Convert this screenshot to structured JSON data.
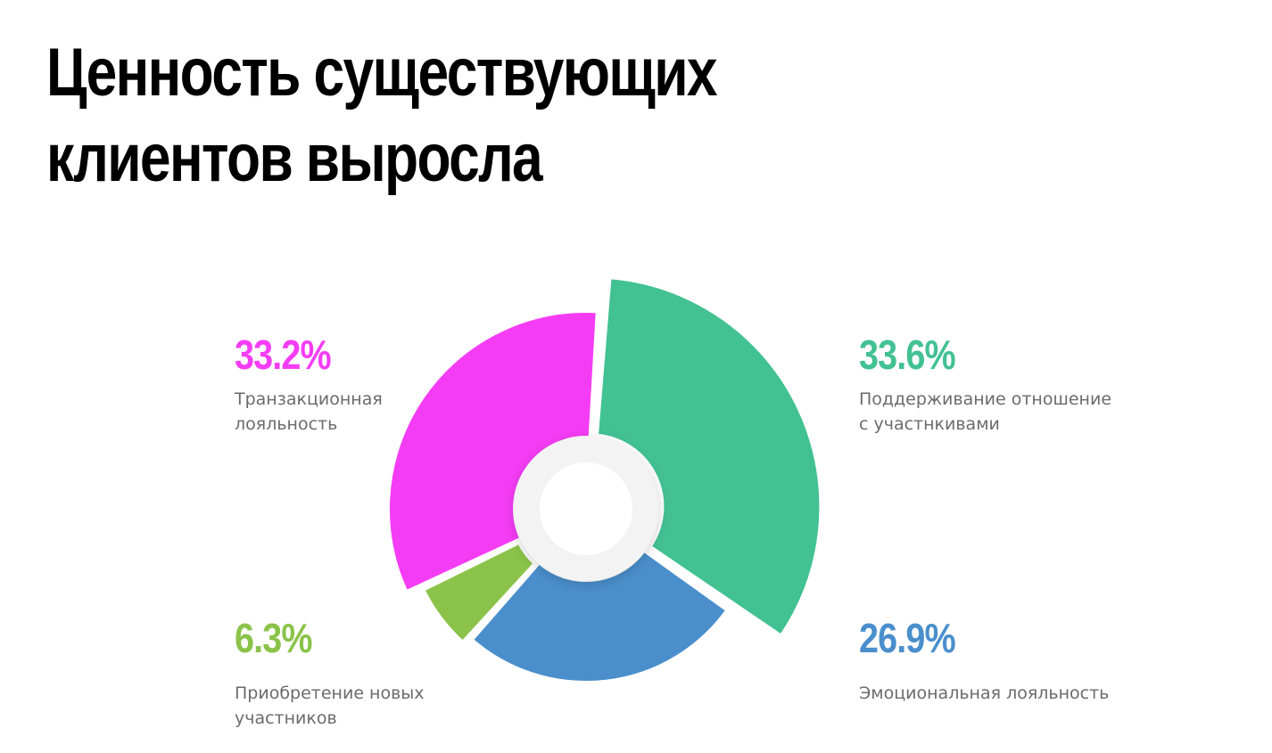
{
  "title_line1": "Ценность существующих",
  "title_line2": "клиентов выросла",
  "chart_data": {
    "type": "pie",
    "variant": "exploded-donut",
    "title": "Ценность существующих клиентов выросла",
    "series": [
      {
        "name": "Транзакционная лояльность",
        "value_label": "33.2%",
        "color": "#f53cf5",
        "line1": "Транзакционная",
        "line2": "лояльность"
      },
      {
        "name": "Поддерживание отношение с участнкивами",
        "value_label": "33.6%",
        "color": "#42c193",
        "line1": "Поддерживание отношение",
        "line2": "с участнкивами"
      },
      {
        "name": "Приобретение новых участников",
        "value_label": "6.3%",
        "color": "#8bc34a",
        "line1": "Приобретение новых участников",
        "line2": ""
      },
      {
        "name": "Эмоциональная лояльность",
        "value_label": "26.9%",
        "color": "#4a8fcc",
        "line1": "Эмоциональная лояльность",
        "line2": ""
      }
    ],
    "values": [
      33.2,
      33.6,
      6.3,
      26.9
    ],
    "legend_placement": "around"
  }
}
